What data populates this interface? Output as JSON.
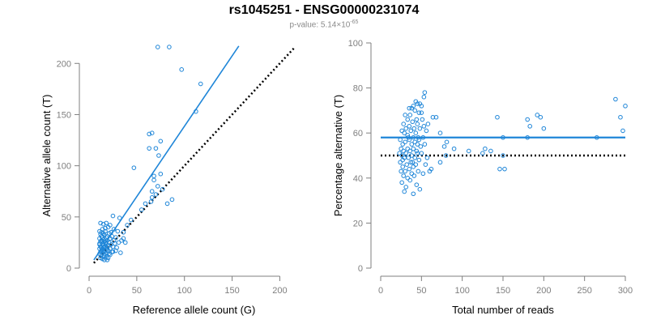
{
  "header": {
    "title": "rs1045251 - ENSG00000231074",
    "pvalue_prefix": "p-value: 5.14×10",
    "pvalue_exponent": "-65"
  },
  "colors": {
    "accent": "#1f86d8",
    "axis": "#7f7f7f",
    "dotted": "#000000"
  },
  "chart_data": [
    {
      "type": "scatter",
      "xlabel": "Reference allele count (G)",
      "ylabel": "Alternative allele count (T)",
      "xlim": [
        0,
        220
      ],
      "ylim": [
        0,
        220
      ],
      "xticks": [
        0,
        50,
        100,
        150,
        200
      ],
      "yticks": [
        0,
        50,
        100,
        150,
        200
      ],
      "grid": false,
      "fit_line": {
        "x": [
          5,
          157
        ],
        "y": [
          8,
          217
        ]
      },
      "reference_line": {
        "x": [
          5,
          215
        ],
        "y": [
          5,
          215
        ]
      },
      "points": [
        [
          72,
          216
        ],
        [
          84,
          216
        ],
        [
          97,
          194
        ],
        [
          117,
          180
        ],
        [
          112,
          153
        ],
        [
          63,
          131
        ],
        [
          66,
          132
        ],
        [
          75,
          124
        ],
        [
          70,
          117
        ],
        [
          63,
          117
        ],
        [
          73,
          110
        ],
        [
          47,
          98
        ],
        [
          75,
          92
        ],
        [
          68,
          90
        ],
        [
          68,
          86
        ],
        [
          72,
          80
        ],
        [
          77,
          77
        ],
        [
          66,
          75
        ],
        [
          66,
          69
        ],
        [
          70,
          72
        ],
        [
          65,
          65
        ],
        [
          87,
          67
        ],
        [
          82,
          63
        ],
        [
          59,
          63
        ],
        [
          55,
          57
        ],
        [
          25,
          51
        ],
        [
          32,
          49
        ],
        [
          44,
          47
        ],
        [
          40,
          42
        ],
        [
          22,
          42
        ],
        [
          30,
          36
        ],
        [
          36,
          35
        ],
        [
          36,
          29
        ],
        [
          34,
          27
        ],
        [
          38,
          25
        ],
        [
          12,
          44
        ],
        [
          15,
          43
        ],
        [
          20,
          40
        ],
        [
          14,
          38
        ],
        [
          17,
          36
        ],
        [
          13,
          35
        ],
        [
          21,
          34
        ],
        [
          12,
          33
        ],
        [
          16,
          32
        ],
        [
          24,
          31
        ],
        [
          14,
          30
        ],
        [
          18,
          30
        ],
        [
          11,
          29
        ],
        [
          22,
          29
        ],
        [
          15,
          28
        ],
        [
          13,
          27
        ],
        [
          19,
          27
        ],
        [
          26,
          27
        ],
        [
          12,
          26
        ],
        [
          16,
          26
        ],
        [
          21,
          25
        ],
        [
          14,
          24
        ],
        [
          18,
          24
        ],
        [
          11,
          23
        ],
        [
          23,
          23
        ],
        [
          15,
          22
        ],
        [
          20,
          22
        ],
        [
          12,
          21
        ],
        [
          17,
          21
        ],
        [
          25,
          21
        ],
        [
          13,
          20
        ],
        [
          16,
          20
        ],
        [
          19,
          20
        ],
        [
          22,
          19
        ],
        [
          11,
          19
        ],
        [
          14,
          18
        ],
        [
          18,
          18
        ],
        [
          13,
          17
        ],
        [
          16,
          17
        ],
        [
          20,
          17
        ],
        [
          12,
          16
        ],
        [
          15,
          16
        ],
        [
          24,
          16
        ],
        [
          14,
          15
        ],
        [
          19,
          15
        ],
        [
          11,
          14
        ],
        [
          17,
          14
        ],
        [
          13,
          13
        ],
        [
          22,
          13
        ],
        [
          16,
          12
        ],
        [
          15,
          11
        ],
        [
          18,
          11
        ],
        [
          20,
          10
        ],
        [
          12,
          10
        ],
        [
          14,
          9
        ],
        [
          16,
          8
        ],
        [
          19,
          8
        ],
        [
          11,
          24
        ],
        [
          14,
          26
        ],
        [
          19,
          31
        ],
        [
          23,
          35
        ],
        [
          26,
          38
        ],
        [
          28,
          30
        ],
        [
          27,
          24
        ],
        [
          29,
          20
        ],
        [
          31,
          25
        ],
        [
          21,
          14
        ],
        [
          25,
          16
        ],
        [
          28,
          17
        ],
        [
          33,
          15
        ],
        [
          13,
          31
        ],
        [
          15,
          34
        ],
        [
          17,
          39
        ],
        [
          18,
          44
        ],
        [
          11,
          36
        ],
        [
          15,
          20
        ],
        [
          17,
          25
        ]
      ]
    },
    {
      "type": "scatter",
      "xlabel": "Total number of reads",
      "ylabel": "Percentage alternative (T)",
      "xlim": [
        0,
        300
      ],
      "ylim": [
        0,
        100
      ],
      "xticks": [
        0,
        50,
        100,
        150,
        200,
        250,
        300
      ],
      "yticks": [
        0,
        20,
        40,
        60,
        80,
        100
      ],
      "grid": false,
      "mean_line": {
        "y": 58
      },
      "reference_line": {
        "y": 50
      },
      "points": [
        [
          288,
          75
        ],
        [
          300,
          72
        ],
        [
          294,
          67
        ],
        [
          297,
          61
        ],
        [
          265,
          58
        ],
        [
          192,
          68
        ],
        [
          196,
          67
        ],
        [
          180,
          66
        ],
        [
          183,
          63
        ],
        [
          200,
          62
        ],
        [
          180,
          58
        ],
        [
          143,
          67
        ],
        [
          150,
          58
        ],
        [
          146,
          44
        ],
        [
          152,
          44
        ],
        [
          135,
          52
        ],
        [
          150,
          50
        ],
        [
          128,
          53
        ],
        [
          125,
          51
        ],
        [
          108,
          52
        ],
        [
          90,
          53
        ],
        [
          78,
          54
        ],
        [
          81,
          56
        ],
        [
          73,
          60
        ],
        [
          80,
          50
        ],
        [
          73,
          47
        ],
        [
          68,
          67
        ],
        [
          64,
          67
        ],
        [
          62,
          44
        ],
        [
          60,
          43
        ],
        [
          54,
          78
        ],
        [
          53,
          76
        ],
        [
          50,
          72
        ],
        [
          48,
          73
        ],
        [
          45,
          73
        ],
        [
          43,
          74
        ],
        [
          40,
          72
        ],
        [
          38,
          71
        ],
        [
          35,
          71
        ],
        [
          42,
          70
        ],
        [
          47,
          69
        ],
        [
          36,
          68
        ],
        [
          30,
          68
        ],
        [
          33,
          66
        ],
        [
          44,
          66
        ],
        [
          51,
          66
        ],
        [
          39,
          65
        ],
        [
          28,
          64
        ],
        [
          45,
          64
        ],
        [
          35,
          63
        ],
        [
          31,
          62
        ],
        [
          41,
          62
        ],
        [
          48,
          62
        ],
        [
          26,
          61
        ],
        [
          37,
          61
        ],
        [
          43,
          60
        ],
        [
          29,
          60
        ],
        [
          33,
          59
        ],
        [
          40,
          58
        ],
        [
          46,
          58
        ],
        [
          52,
          58
        ],
        [
          24,
          57
        ],
        [
          35,
          57
        ],
        [
          42,
          56
        ],
        [
          30,
          56
        ],
        [
          27,
          55
        ],
        [
          38,
          55
        ],
        [
          45,
          55
        ],
        [
          49,
          54
        ],
        [
          25,
          53
        ],
        [
          33,
          53
        ],
        [
          40,
          53
        ],
        [
          36,
          52
        ],
        [
          28,
          52
        ],
        [
          44,
          52
        ],
        [
          23,
          51
        ],
        [
          31,
          51
        ],
        [
          50,
          51
        ],
        [
          38,
          50
        ],
        [
          26,
          50
        ],
        [
          42,
          49
        ],
        [
          34,
          49
        ],
        [
          29,
          49
        ],
        [
          47,
          48
        ],
        [
          24,
          47
        ],
        [
          37,
          47
        ],
        [
          32,
          46
        ],
        [
          43,
          46
        ],
        [
          27,
          45
        ],
        [
          40,
          45
        ],
        [
          35,
          44
        ],
        [
          25,
          43
        ],
        [
          30,
          43
        ],
        [
          46,
          43
        ],
        [
          38,
          42
        ],
        [
          28,
          41
        ],
        [
          41,
          41
        ],
        [
          33,
          40
        ],
        [
          36,
          39
        ],
        [
          26,
          38
        ],
        [
          44,
          37
        ],
        [
          31,
          36
        ],
        [
          48,
          35
        ],
        [
          29,
          34
        ],
        [
          40,
          33
        ],
        [
          52,
          42
        ],
        [
          55,
          46
        ],
        [
          57,
          49
        ],
        [
          54,
          55
        ],
        [
          56,
          61
        ],
        [
          53,
          63
        ],
        [
          58,
          64
        ],
        [
          50,
          69
        ],
        [
          47,
          57
        ],
        [
          39,
          47
        ],
        [
          34,
          58
        ],
        [
          27,
          48
        ],
        [
          45,
          51
        ]
      ]
    }
  ]
}
